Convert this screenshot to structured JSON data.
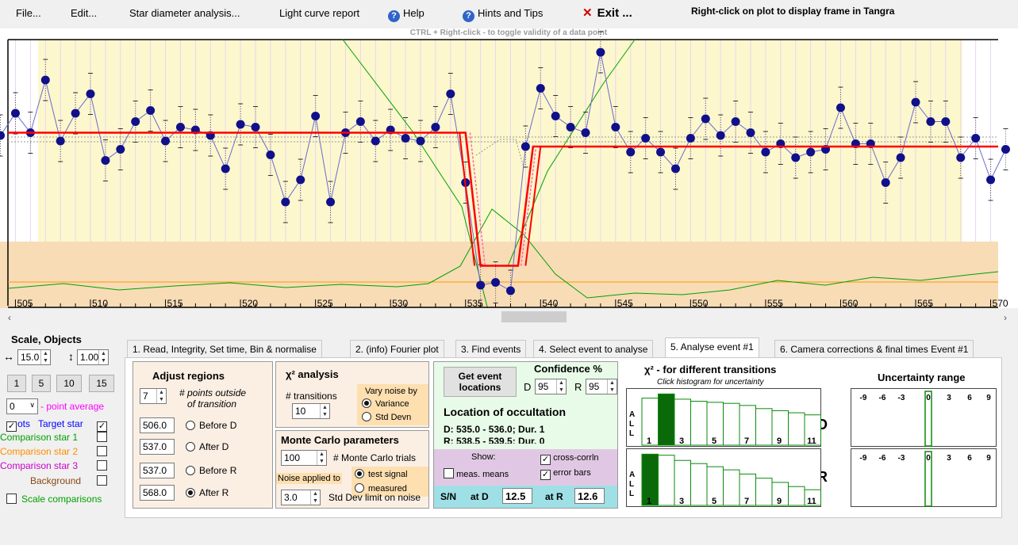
{
  "menu": {
    "file": "File...",
    "edit": "Edit...",
    "star_diameter": "Star diameter analysis...",
    "light_curve": "Light curve report",
    "help": "Help",
    "hints": "Hints and Tips",
    "exit": "Exit ...",
    "right_click_note": "Right-click on plot to display frame in Tangra"
  },
  "plot": {
    "ctrl_note": "CTRL + Right-click  -  to toggle validity of a data point",
    "x_ticks": [
      "505",
      "510",
      "515",
      "520",
      "525",
      "530",
      "535",
      "540",
      "545",
      "550",
      "555",
      "560",
      "565",
      "570"
    ]
  },
  "chart_data": {
    "type": "line",
    "x_range": [
      504.5,
      570.5
    ],
    "ylim": [
      0,
      1
    ],
    "target_star": [
      [
        504,
        0.62
      ],
      [
        505,
        0.7
      ],
      [
        506,
        0.63
      ],
      [
        507,
        0.82
      ],
      [
        508,
        0.6
      ],
      [
        509,
        0.7
      ],
      [
        510,
        0.77
      ],
      [
        511,
        0.53
      ],
      [
        512,
        0.57
      ],
      [
        513,
        0.67
      ],
      [
        514,
        0.71
      ],
      [
        515,
        0.6
      ],
      [
        516,
        0.65
      ],
      [
        517,
        0.64
      ],
      [
        518,
        0.62
      ],
      [
        519,
        0.5
      ],
      [
        520,
        0.66
      ],
      [
        521,
        0.65
      ],
      [
        522,
        0.55
      ],
      [
        523,
        0.38
      ],
      [
        524,
        0.46
      ],
      [
        525,
        0.69
      ],
      [
        526,
        0.38
      ],
      [
        527,
        0.63
      ],
      [
        528,
        0.67
      ],
      [
        529,
        0.6
      ],
      [
        530,
        0.64
      ],
      [
        531,
        0.61
      ],
      [
        532,
        0.6
      ],
      [
        533,
        0.65
      ],
      [
        534,
        0.77
      ],
      [
        535,
        0.45
      ],
      [
        536,
        0.08
      ],
      [
        537,
        0.09
      ],
      [
        538,
        0.06
      ],
      [
        539,
        0.58
      ],
      [
        540,
        0.79
      ],
      [
        541,
        0.69
      ],
      [
        542,
        0.65
      ],
      [
        543,
        0.63
      ],
      [
        544,
        0.92
      ],
      [
        545,
        0.65
      ],
      [
        546,
        0.56
      ],
      [
        547,
        0.61
      ],
      [
        548,
        0.56
      ],
      [
        549,
        0.5
      ],
      [
        550,
        0.61
      ],
      [
        551,
        0.68
      ],
      [
        552,
        0.62
      ],
      [
        553,
        0.67
      ],
      [
        554,
        0.63
      ],
      [
        555,
        0.56
      ],
      [
        556,
        0.59
      ],
      [
        557,
        0.54
      ],
      [
        558,
        0.56
      ],
      [
        559,
        0.57
      ],
      [
        560,
        0.72
      ],
      [
        561,
        0.59
      ],
      [
        562,
        0.59
      ],
      [
        563,
        0.45
      ],
      [
        564,
        0.54
      ],
      [
        565,
        0.74
      ],
      [
        566,
        0.67
      ],
      [
        567,
        0.67
      ],
      [
        568,
        0.54
      ],
      [
        569,
        0.61
      ],
      [
        570,
        0.46
      ],
      [
        571,
        0.57
      ]
    ],
    "model": [
      [
        504.5,
        0.63
      ],
      [
        535.0,
        0.63
      ],
      [
        536.0,
        0.15
      ],
      [
        537.0,
        0.15
      ],
      [
        538.5,
        0.15
      ],
      [
        539.5,
        0.58
      ],
      [
        570.5,
        0.58
      ]
    ]
  },
  "scroll": {
    "left": "‹",
    "right": "›"
  },
  "left_panel": {
    "title": "Scale,  Objects",
    "hscale": "15.0",
    "vscale": "1.00",
    "buttons": [
      "1",
      "5",
      "10",
      "15"
    ],
    "avg_value": "0",
    "avg_label": "- point average",
    "row1_a": "ots",
    "row1_b": "Target star",
    "comp1": "Comparison star 1",
    "comp2": "Comparison star 2",
    "comp3": "Comparison star 3",
    "background": "Background",
    "scale_comp": "Scale comparisons",
    "colors": {
      "target": "#0000ff",
      "comp1": "#00a000",
      "comp2": "#ff8c00",
      "comp3": "#cc00cc",
      "background": "#8b4513"
    }
  },
  "tabs": [
    "1. Read, Integrity, Set time, Bin & normalise",
    "2. (info) Fourier plot",
    "3. Find events",
    "4. Select event to analyse",
    "5. Analyse event #1",
    "6. Camera corrections & final times Event #1"
  ],
  "adjust": {
    "title": "Adjust regions",
    "points": "7",
    "points_label_1": "# points outside",
    "points_label_2": "of transition",
    "rows": [
      {
        "value": "506.0",
        "label": "Before D"
      },
      {
        "value": "537.0",
        "label": "After D"
      },
      {
        "value": "537.0",
        "label": "Before R"
      },
      {
        "value": "568.0",
        "label": "After R"
      }
    ]
  },
  "chi2": {
    "title": "χ² analysis",
    "transitions_label": "# transitions",
    "transitions": "10",
    "vary_label": "Vary noise by",
    "variance": "Variance",
    "stddev": "Std Devn"
  },
  "monte": {
    "title": "Monte Carlo parameters",
    "trials": "100",
    "trials_label": "# Monte Carlo trials",
    "noise_applied": "Noise applied to",
    "test_signal": "test signal",
    "measured": "measured",
    "sd_limit": "3.0",
    "sd_label": "Std Dev limit on noise"
  },
  "location": {
    "get_btn_1": "Get event",
    "get_btn_2": "locations",
    "conf_title": "Confidence %",
    "d_label": "D",
    "d_conf": "95",
    "r_label": "R",
    "r_conf": "95",
    "loc_title": "Location of occultation",
    "d_line": "D: 535.0 - 536.0; Dur. 1",
    "r_line": "R: 538.5 - 539.5; Dur. 0",
    "show": "Show:",
    "meas_means": "meas. means",
    "cross": "cross-corrln",
    "error_bars": "error bars",
    "sn": "S/N",
    "at_d": "at D",
    "sn_d": "12.5",
    "at_r": "at R",
    "sn_r": "12.6"
  },
  "transitions": {
    "title": "χ² - for different transitions",
    "subtitle": "Click histogram for uncertainty",
    "all": [
      "A",
      "L",
      "L"
    ],
    "labels": [
      "1",
      "3",
      "5",
      "7",
      "9",
      "11"
    ],
    "d_bars": [
      0.9,
      0.98,
      0.88,
      0.84,
      0.82,
      0.8,
      0.76,
      0.7,
      0.66,
      0.62,
      0.58
    ],
    "r_bars": [
      0.98,
      0.96,
      0.86,
      0.8,
      0.74,
      0.68,
      0.6,
      0.52,
      0.44,
      0.36,
      0.3
    ]
  },
  "uncertainty": {
    "title": "Uncertainty range",
    "ticks": [
      "-9",
      "-6",
      "-3",
      "0",
      "3",
      "6",
      "9"
    ],
    "d": "D",
    "r": "R"
  }
}
